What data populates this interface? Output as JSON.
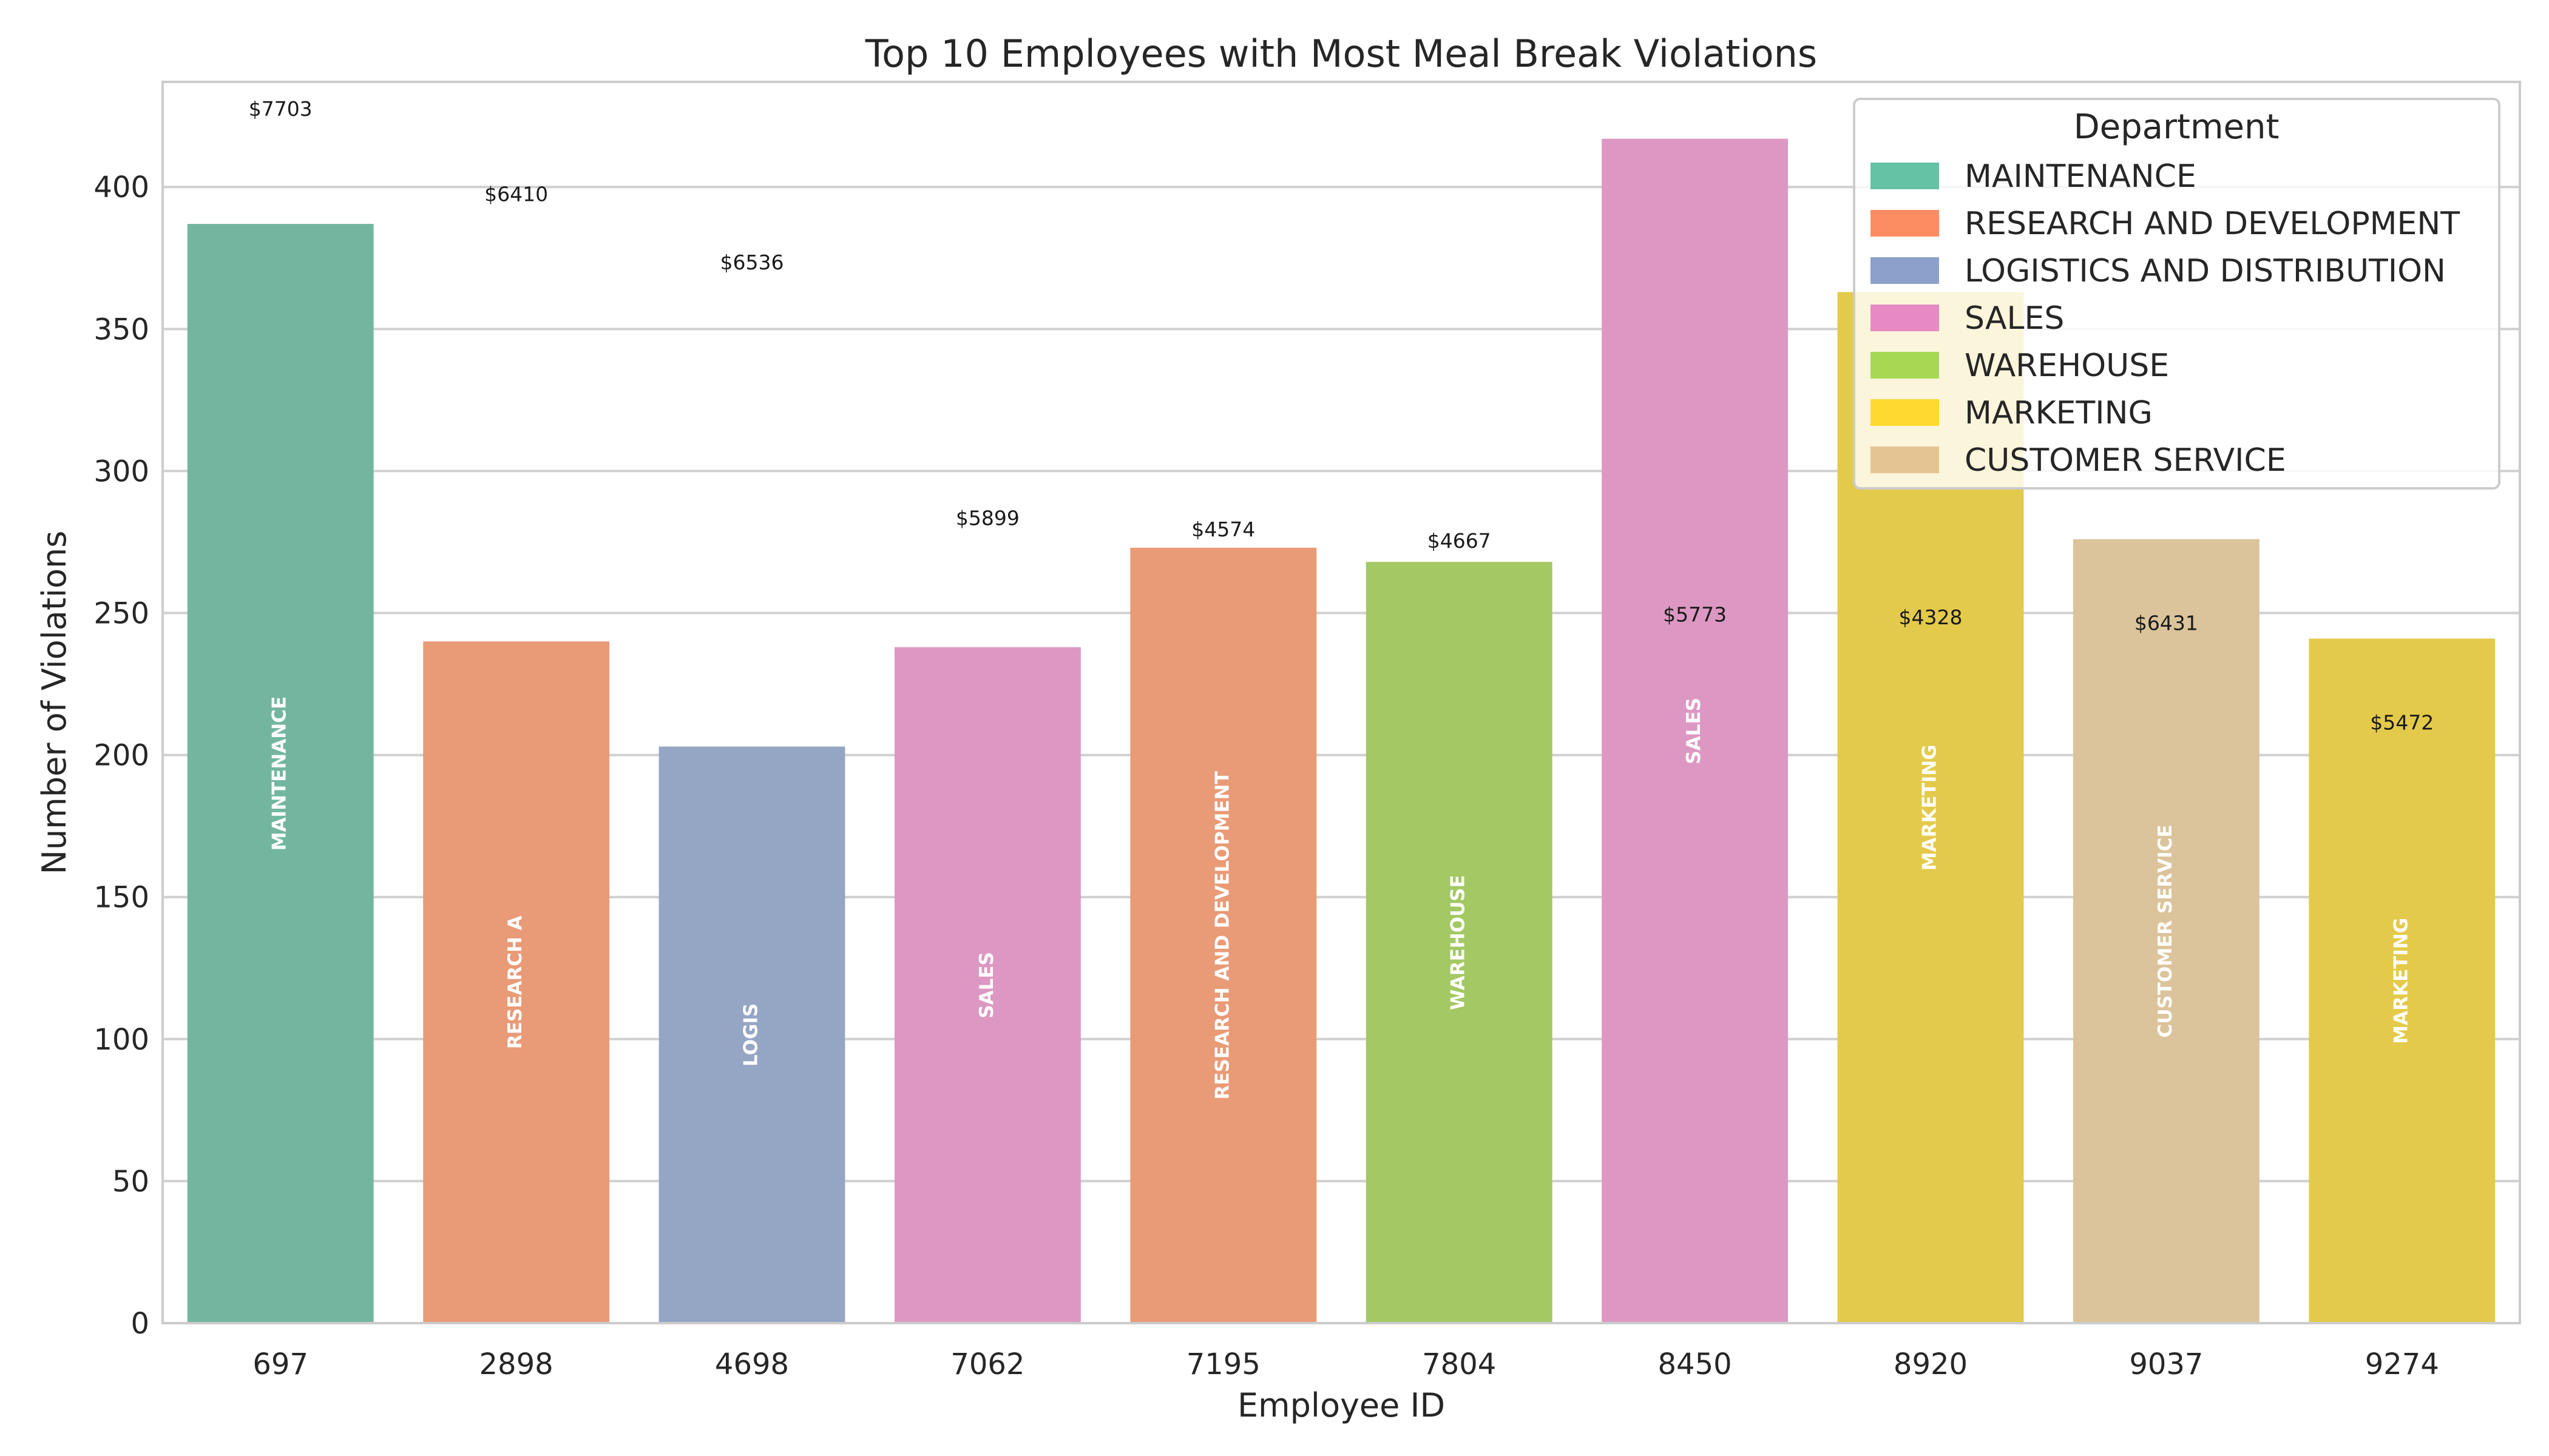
{
  "chart_data": {
    "type": "bar",
    "title": "Top 10 Employees with Most Meal Break Violations",
    "xlabel": "Employee ID",
    "ylabel": "Number of Violations",
    "ylim": [
      0,
      437
    ],
    "yticks": [
      0,
      50,
      100,
      150,
      200,
      250,
      300,
      350,
      400
    ],
    "grid": true,
    "legend": {
      "title": "Department",
      "placement": "top-right",
      "entries": [
        {
          "name": "MAINTENANCE",
          "color": "#66c2a5"
        },
        {
          "name": "RESEARCH AND DEVELOPMENT",
          "color": "#fc8d62"
        },
        {
          "name": "LOGISTICS AND DISTRIBUTION",
          "color": "#8da0cb"
        },
        {
          "name": "SALES",
          "color": "#e78ac3"
        },
        {
          "name": "WAREHOUSE",
          "color": "#a6d854"
        },
        {
          "name": "MARKETING",
          "color": "#ffd92f"
        },
        {
          "name": "CUSTOMER SERVICE",
          "color": "#e5c494"
        }
      ]
    },
    "categories": [
      "697",
      "2898",
      "4698",
      "7062",
      "7195",
      "7804",
      "8450",
      "8920",
      "9037",
      "9274"
    ],
    "values": [
      387,
      240,
      203,
      238,
      273,
      268,
      417,
      363,
      276,
      241
    ],
    "departments": [
      "MAINTENANCE",
      "RESEARCH AND DEVELOPMENT",
      "LOGISTICS AND DISTRIBUTION",
      "SALES",
      "RESEARCH AND DEVELOPMENT",
      "WAREHOUSE",
      "SALES",
      "MARKETING",
      "CUSTOMER SERVICE",
      "MARKETING"
    ],
    "bar_colors": [
      "#73b69f",
      "#e99a76",
      "#95a5c4",
      "#dc98c2",
      "#e99a76",
      "#a3c864",
      "#dc98c2",
      "#e3ca4a",
      "#dbc39b",
      "#e3ca4a"
    ],
    "dollar_labels": [
      "$7703",
      "$6410",
      "$6536",
      "$5899",
      "$4574",
      "$4667",
      "$5773",
      "$4328",
      "$6431",
      "$5472"
    ],
    "dollar_label_levels": [
      425,
      395,
      371,
      281,
      277,
      273,
      247,
      246,
      244,
      209
    ],
    "bar_texts": [
      "MAINTENANCE",
      "RESEARCH A",
      "LOGIS",
      "SALES",
      "RESEARCH AND DEVELOPMENT",
      "WAREHOUSE",
      "SALES",
      "MARKETING",
      "CUSTOMER SERVICE",
      "MARKETING"
    ]
  }
}
